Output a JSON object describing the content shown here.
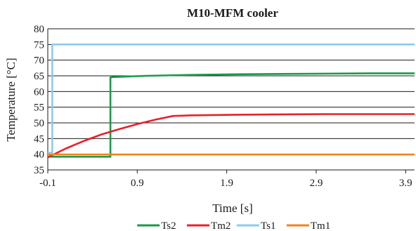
{
  "chart_data": {
    "type": "line",
    "title": "M10-MFM cooler",
    "xlabel": "Time [s]",
    "ylabel": "Temperature [°C]",
    "xlim": [
      -0.1,
      4.0
    ],
    "ylim": [
      35,
      80
    ],
    "xticks": [
      -0.1,
      0.9,
      1.9,
      2.9,
      3.9
    ],
    "xtick_labels": [
      "-0.1",
      "0.9",
      "1.9",
      "2.9",
      "3.9"
    ],
    "yticks": [
      35,
      40,
      45,
      50,
      55,
      60,
      65,
      70,
      75,
      80
    ],
    "ytick_labels": [
      "35",
      "40",
      "45",
      "50",
      "55",
      "60",
      "65",
      "70",
      "75",
      "80"
    ],
    "grid": "horizontal",
    "legend_position": "bottom",
    "series": [
      {
        "name": "Ts2",
        "color": "#1a9a48",
        "x": [
          -0.1,
          0.6,
          0.6,
          0.62,
          1.0,
          1.5,
          2.0,
          2.5,
          3.0,
          3.5,
          4.0
        ],
        "y": [
          39.2,
          39.2,
          64.5,
          64.6,
          65.0,
          65.3,
          65.5,
          65.6,
          65.7,
          65.8,
          65.8
        ]
      },
      {
        "name": "Tm2",
        "color": "#e8202a",
        "x": [
          -0.1,
          0.1,
          0.3,
          0.5,
          0.7,
          0.9,
          1.1,
          1.3,
          1.5,
          2.0,
          2.5,
          3.0,
          3.5,
          4.0
        ],
        "y": [
          39.0,
          41.8,
          44.2,
          46.3,
          48.0,
          49.6,
          51.0,
          52.2,
          52.4,
          52.6,
          52.7,
          52.8,
          52.8,
          52.8
        ]
      },
      {
        "name": "Ts1",
        "color": "#8ccbee",
        "x": [
          -0.1,
          -0.05,
          -0.05,
          4.0
        ],
        "y": [
          40.5,
          40.5,
          75.0,
          75.0
        ]
      },
      {
        "name": "Tm1",
        "color": "#f0821e",
        "x": [
          -0.1,
          4.0
        ],
        "y": [
          39.9,
          39.9
        ]
      }
    ]
  }
}
